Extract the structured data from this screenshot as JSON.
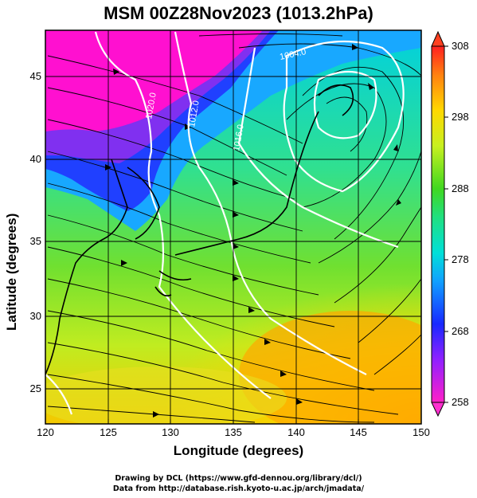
{
  "title": "MSM 00Z28Nov2023 (1013.2hPa)",
  "xlabel": "Longitude (degrees)",
  "ylabel": "Latitude  (degrees)",
  "credits": [
    "Drawing by DCL (https://www.gfd-dennou.org/library/dcl/)",
    "Data from http://database.rish.kyoto-u.ac.jp/arch/jmadata/"
  ],
  "x_ticks": [
    "120",
    "125",
    "130",
    "135",
    "140",
    "145",
    "150"
  ],
  "y_ticks": [
    "25",
    "30",
    "35",
    "40",
    "45"
  ],
  "colorbar": {
    "ticks": [
      "308",
      "298",
      "288",
      "278",
      "268",
      "258"
    ],
    "min": 258,
    "max": 308
  },
  "contour_labels": [
    "1004.0",
    "1012.0",
    "1020.0",
    "1016.0"
  ],
  "map": {
    "lon_range": [
      120,
      150
    ],
    "lat_range": [
      22.4,
      47.6
    ],
    "grid": true,
    "field": "temperature (K)",
    "overlays": [
      "streamlines",
      "isobars",
      "coastlines"
    ]
  },
  "colors": {
    "cold": "#ff00cc",
    "cool": "#2040ff",
    "mid": "#00d8c0",
    "warm": "#40e030",
    "hot": "#ffd000",
    "hottest": "#ff3020"
  }
}
